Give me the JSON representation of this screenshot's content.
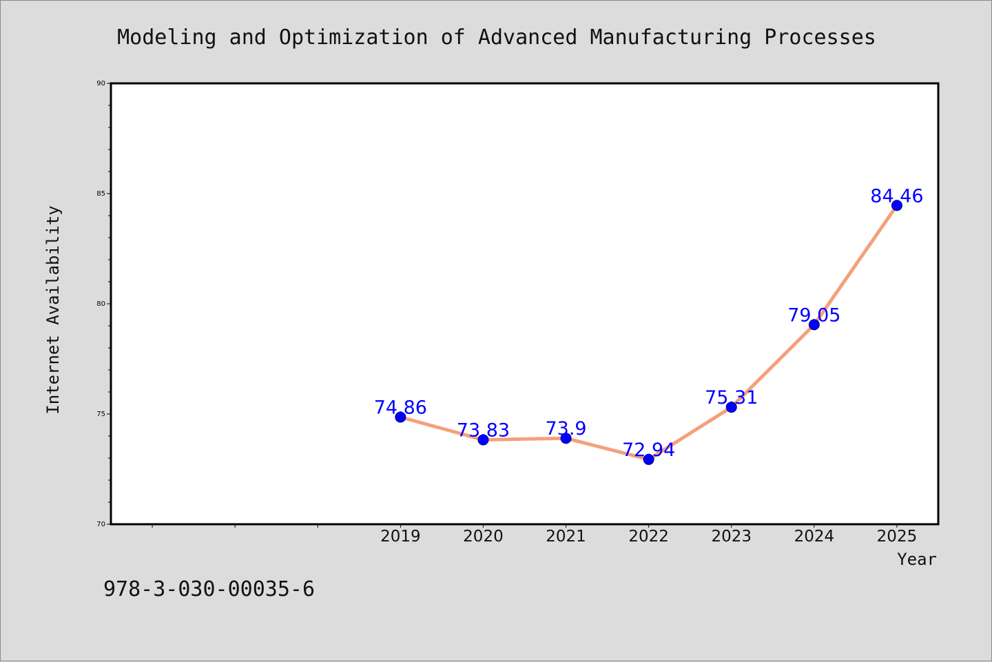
{
  "chart_data": {
    "type": "line",
    "title": "Modeling and Optimization of Advanced Manufacturing Processes",
    "xlabel": "Year",
    "ylabel": "Internet Availability",
    "ylim": [
      70,
      90
    ],
    "x_range": [
      2015.5,
      2025.5
    ],
    "yticks": [
      70,
      75,
      80,
      85,
      90
    ],
    "categories": [
      "2019",
      "2020",
      "2021",
      "2022",
      "2023",
      "2024",
      "2025"
    ],
    "series": [
      {
        "values": [
          74.86,
          73.83,
          73.9,
          72.94,
          75.31,
          79.05,
          84.46
        ],
        "labels": [
          "74.86",
          "73.83",
          "73.9",
          "72.94",
          "75.31",
          "79.05",
          "84.46"
        ]
      }
    ],
    "grid": false,
    "legend": "none"
  },
  "footer": {
    "isbn": "978-3-030-00035-6"
  },
  "colors": {
    "line": "#f4a07c",
    "marker": "#0000ff",
    "label": "#0000ff",
    "background": "#dcdcdc",
    "plot_background": "#ffffff"
  }
}
